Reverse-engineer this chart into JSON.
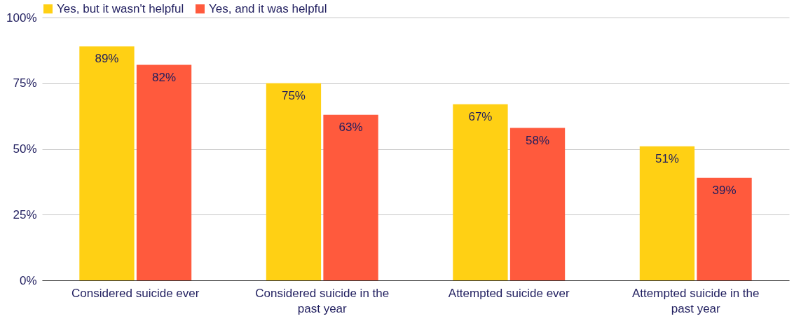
{
  "chart_data": {
    "type": "bar",
    "categories": [
      "Considered suicide ever",
      "Considered suicide in the past year",
      "Attempted suicide ever",
      "Attempted suicide in the past year"
    ],
    "series": [
      {
        "name": "Yes, but it wasn't helpful",
        "color": "#ffd014",
        "values": [
          89,
          75,
          67,
          51
        ],
        "value_labels": [
          "89%",
          "75%",
          "67%",
          "51%"
        ]
      },
      {
        "name": "Yes, and it was helpful",
        "color": "#ff5a3d",
        "values": [
          82,
          63,
          58,
          39
        ],
        "value_labels": [
          "82%",
          "63%",
          "58%",
          "39%"
        ]
      }
    ],
    "ylim": [
      0,
      100
    ],
    "yticks": [
      {
        "value": 0,
        "label": "0%"
      },
      {
        "value": 25,
        "label": "25%"
      },
      {
        "value": 50,
        "label": "50%"
      },
      {
        "value": 75,
        "label": "75%"
      },
      {
        "value": 100,
        "label": "100%"
      }
    ],
    "grid": "y",
    "legend": "top"
  }
}
